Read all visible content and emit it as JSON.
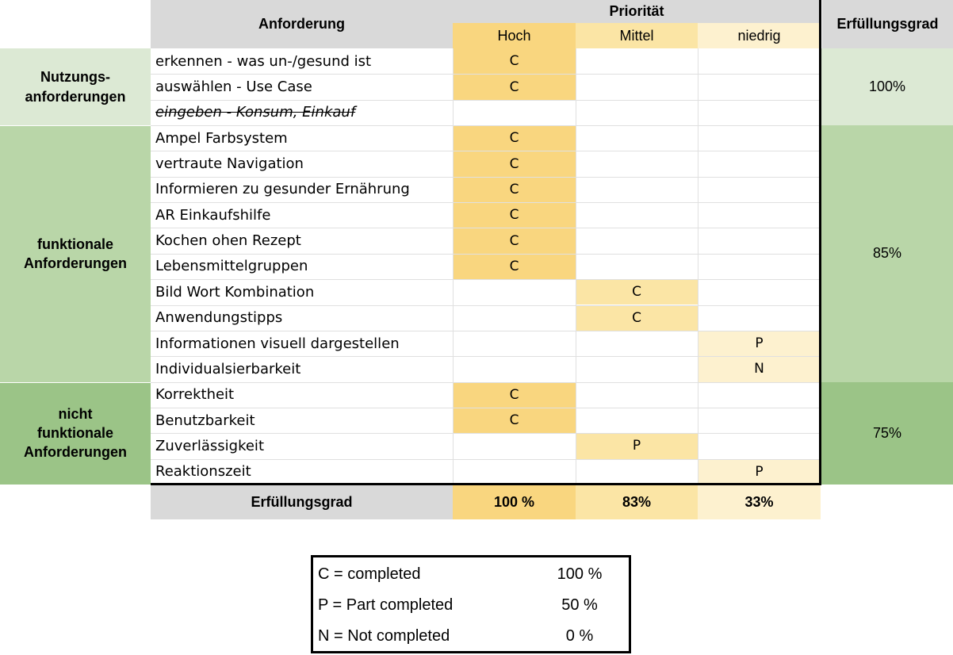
{
  "header": {
    "requirement": "Anforderung",
    "priority": "Priorität",
    "fulfillment": "Erfüllungsgrad",
    "high": "Hoch",
    "medium": "Mittel",
    "low": "niedrig"
  },
  "colors": {
    "high": "#f9d67f",
    "medium": "#fbe5a5",
    "low": "#fdf1cf",
    "group1": "#dce9d4",
    "group2": "#b9d6a8",
    "group3": "#9bc487",
    "header_gray": "#d9d9d9"
  },
  "groups": [
    {
      "label_line1": "Nutzungs-",
      "label_line2": "anforderungen",
      "label_line3": "",
      "percent": "100%",
      "start": 0,
      "count": 3
    },
    {
      "label_line1": "funktionale",
      "label_line2": "Anforderungen",
      "label_line3": "",
      "percent": "85%",
      "start": 3,
      "count": 10
    },
    {
      "label_line1": "nicht",
      "label_line2": "funktionale",
      "label_line3": "Anforderungen",
      "percent": "75%",
      "start": 13,
      "count": 4
    }
  ],
  "rows": [
    {
      "name": "erkennen - was un-/gesund ist",
      "priority": "high",
      "status": "C"
    },
    {
      "name": "auswählen - Use Case",
      "priority": "high",
      "status": "C"
    },
    {
      "name": "eingeben - Konsum, Einkauf",
      "priority": "none",
      "status": "",
      "struck": true
    },
    {
      "name": "Ampel Farbsystem",
      "priority": "high",
      "status": "C"
    },
    {
      "name": "vertraute Navigation",
      "priority": "high",
      "status": "C"
    },
    {
      "name": "Informieren zu gesunder Ernährung",
      "priority": "high",
      "status": "C"
    },
    {
      "name": "AR Einkaufshilfe",
      "priority": "high",
      "status": "C"
    },
    {
      "name": "Kochen ohen Rezept",
      "priority": "high",
      "status": "C"
    },
    {
      "name": "Lebensmittelgruppen",
      "priority": "high",
      "status": "C"
    },
    {
      "name": "Bild Wort Kombination",
      "priority": "medium",
      "status": "C"
    },
    {
      "name": "Anwendungstipps",
      "priority": "medium",
      "status": "C"
    },
    {
      "name": "Informationen visuell dargestellen",
      "priority": "low",
      "status": "P"
    },
    {
      "name": "Individualsierbarkeit",
      "priority": "low",
      "status": "N"
    },
    {
      "name": "Korrektheit",
      "priority": "high",
      "status": "C"
    },
    {
      "name": "Benutzbarkeit",
      "priority": "high",
      "status": "C"
    },
    {
      "name": "Zuverlässigkeit",
      "priority": "medium",
      "status": "P"
    },
    {
      "name": "Reaktionszeit",
      "priority": "low",
      "status": "P"
    }
  ],
  "footer": {
    "label": "Erfüllungsgrad",
    "high": "100 %",
    "medium": "83%",
    "low": "33%"
  },
  "legend": [
    {
      "code": "C = completed",
      "percent": "100 %"
    },
    {
      "code": "P = Part completed",
      "percent": "50 %"
    },
    {
      "code": "N = Not completed",
      "percent": "0 %"
    }
  ]
}
